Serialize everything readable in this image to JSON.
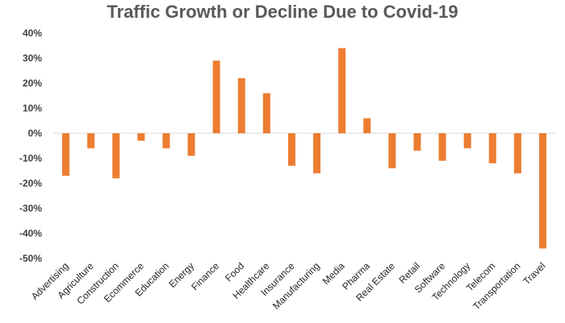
{
  "chart_data": {
    "type": "bar",
    "title": "Traffic Growth or Decline Due to Covid-19",
    "categories": [
      "Advertising",
      "Agriculture",
      "Construction",
      "Ecommerce",
      "Education",
      "Energy",
      "Finance",
      "Food",
      "Healthcare",
      "Insurance",
      "Manufacturing",
      "Media",
      "Pharma",
      "Real Estate",
      "Retail",
      "Software",
      "Technology",
      "Telecom",
      "Transportation",
      "Travel"
    ],
    "values": [
      -17,
      -6,
      -18,
      -3,
      -6,
      -9,
      29,
      22,
      16,
      -13,
      -16,
      34,
      6,
      -14,
      -7,
      -11,
      -6,
      -12,
      -16,
      -46
    ],
    "ylim": [
      -50,
      40
    ],
    "yticks": [
      "40%",
      "30%",
      "20%",
      "10%",
      "0%",
      "-10%",
      "-20%",
      "-30%",
      "-40%",
      "-50%"
    ],
    "xlabel": "",
    "ylabel": "",
    "grid": false,
    "color": "#ED7D31"
  }
}
